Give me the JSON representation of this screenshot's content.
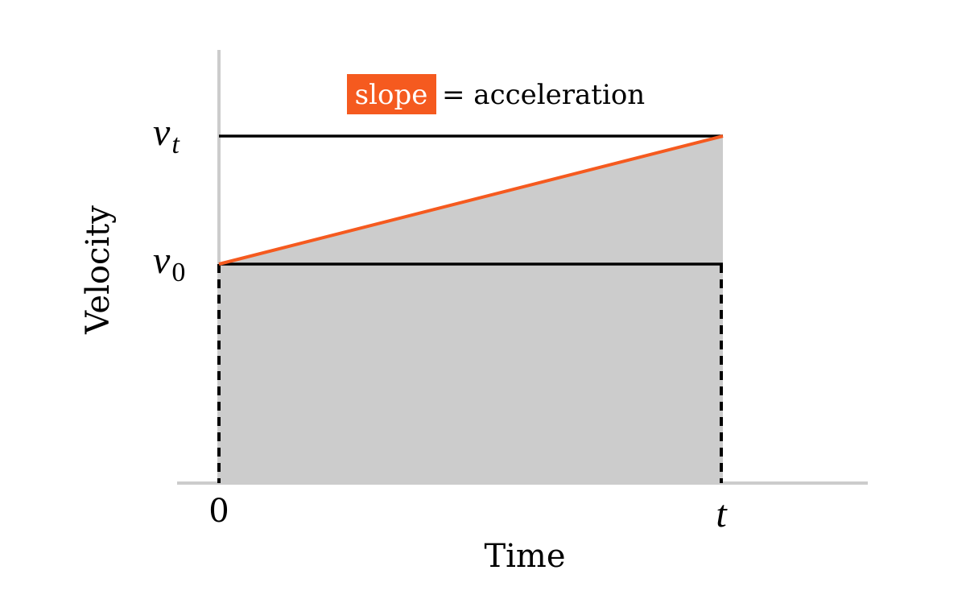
{
  "diagram": {
    "y_axis_label": "Velocity",
    "x_axis_label": "Time",
    "tick_labels": {
      "v_t_base": "v",
      "v_t_sub": "t",
      "v_0_base": "v",
      "v_0_sub": "0",
      "x_zero": "0",
      "x_t": "t"
    },
    "annotation": {
      "highlight": "slope",
      "rest": "= acceleration"
    },
    "colors": {
      "slope_line": "#f55a1f",
      "area_fill": "#cccccc",
      "axis": "#cccccc",
      "guide_lines": "#000000",
      "highlight_bg": "#f55a1f",
      "highlight_text": "#ffffff"
    }
  }
}
